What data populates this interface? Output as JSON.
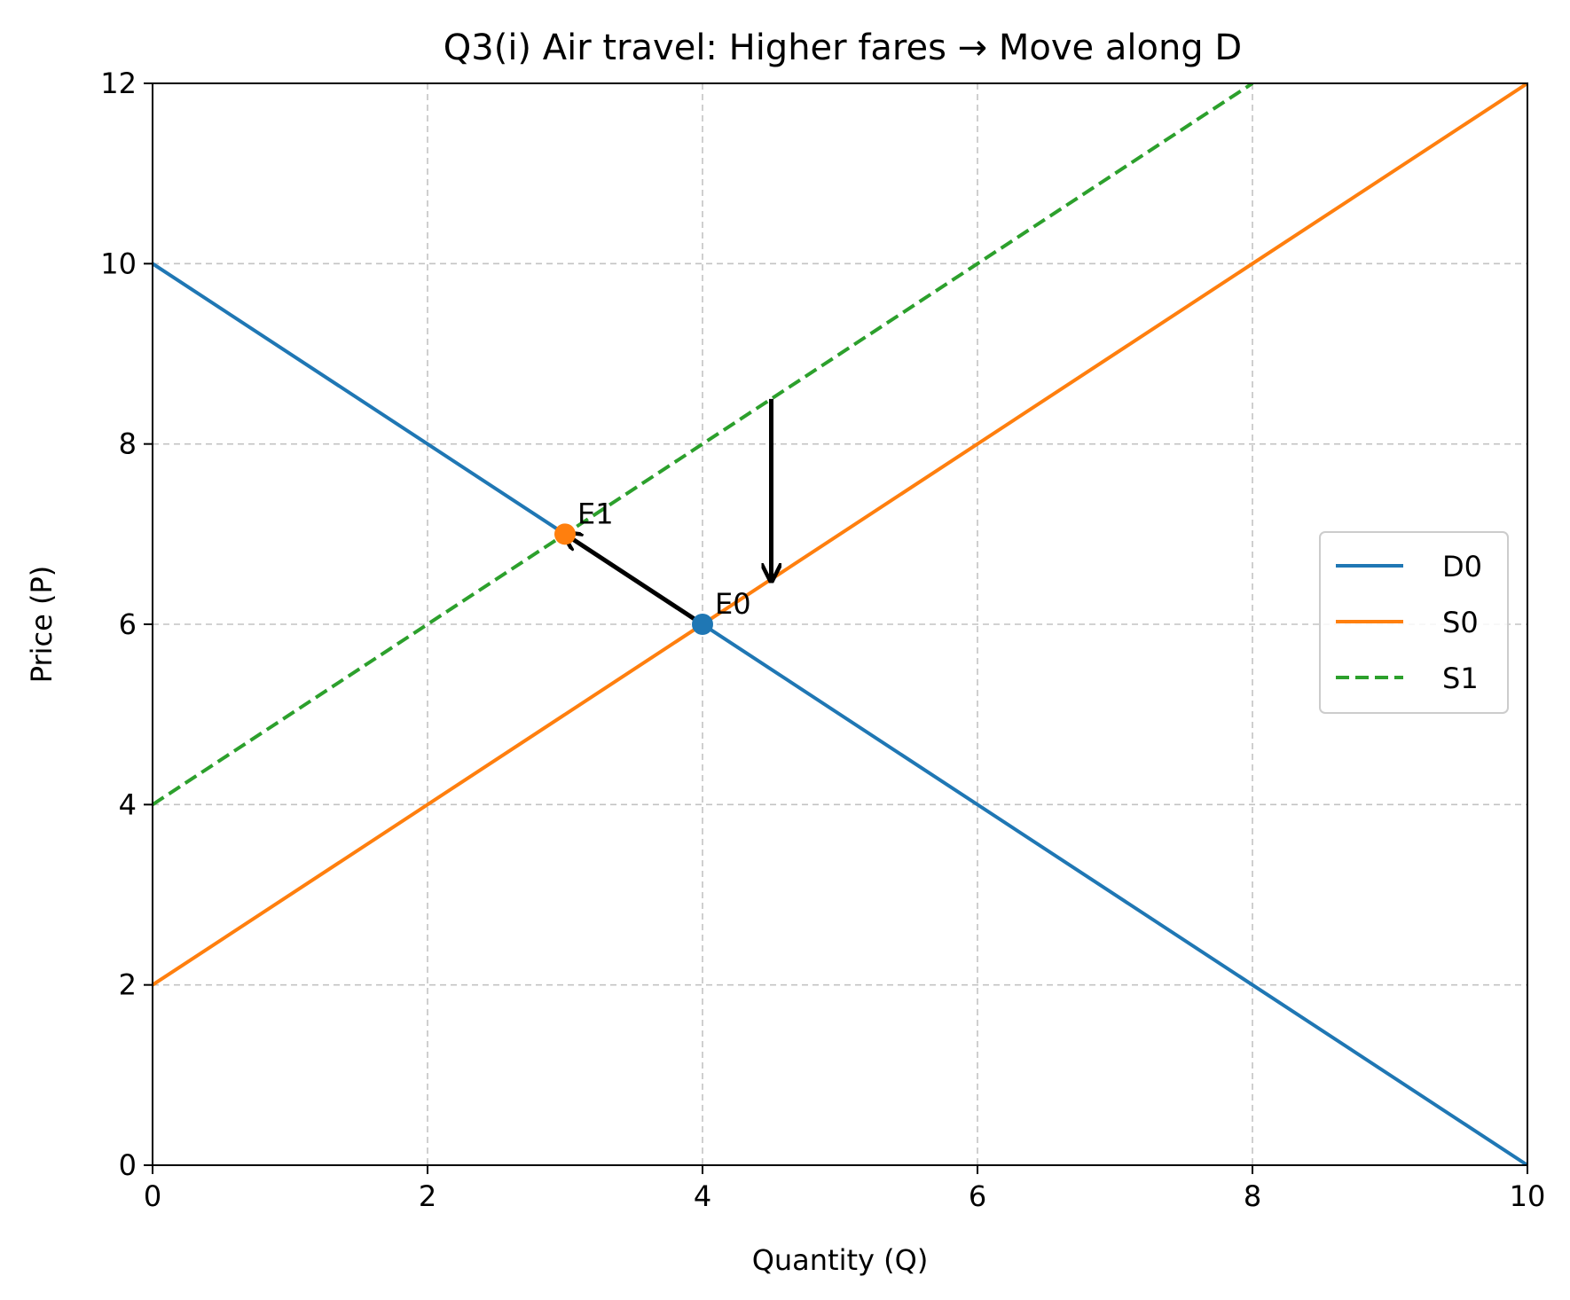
{
  "chart_data": {
    "type": "line",
    "title": "Q3(i) Air travel: Higher fares → Move along D",
    "xlabel": "Quantity (Q)",
    "ylabel": "Price (P)",
    "xlim": [
      0,
      10
    ],
    "ylim": [
      0,
      12
    ],
    "xticks": [
      0,
      2,
      4,
      6,
      8,
      10
    ],
    "yticks": [
      0,
      2,
      4,
      6,
      8,
      10,
      12
    ],
    "grid": true,
    "legend_position": "center-right",
    "series": [
      {
        "name": "D0",
        "color": "#1f77b4",
        "dash": "solid",
        "points": [
          [
            0,
            10
          ],
          [
            10,
            0
          ]
        ]
      },
      {
        "name": "S0",
        "color": "#ff7f0e",
        "dash": "solid",
        "points": [
          [
            0,
            2
          ],
          [
            10,
            12
          ]
        ]
      },
      {
        "name": "S1",
        "color": "#2ca02c",
        "dash": "dashed",
        "points": [
          [
            0,
            4
          ],
          [
            8,
            12
          ]
        ]
      }
    ],
    "points": [
      {
        "label": "E0",
        "x": 4,
        "y": 6,
        "color": "#1f77b4"
      },
      {
        "label": "E1",
        "x": 3,
        "y": 7,
        "color": "#ff7f0e"
      }
    ],
    "arrows": [
      {
        "from": [
          4.5,
          8.5
        ],
        "to": [
          4.5,
          6.5
        ]
      },
      {
        "from": [
          4,
          6
        ],
        "to": [
          3,
          7
        ]
      }
    ]
  }
}
